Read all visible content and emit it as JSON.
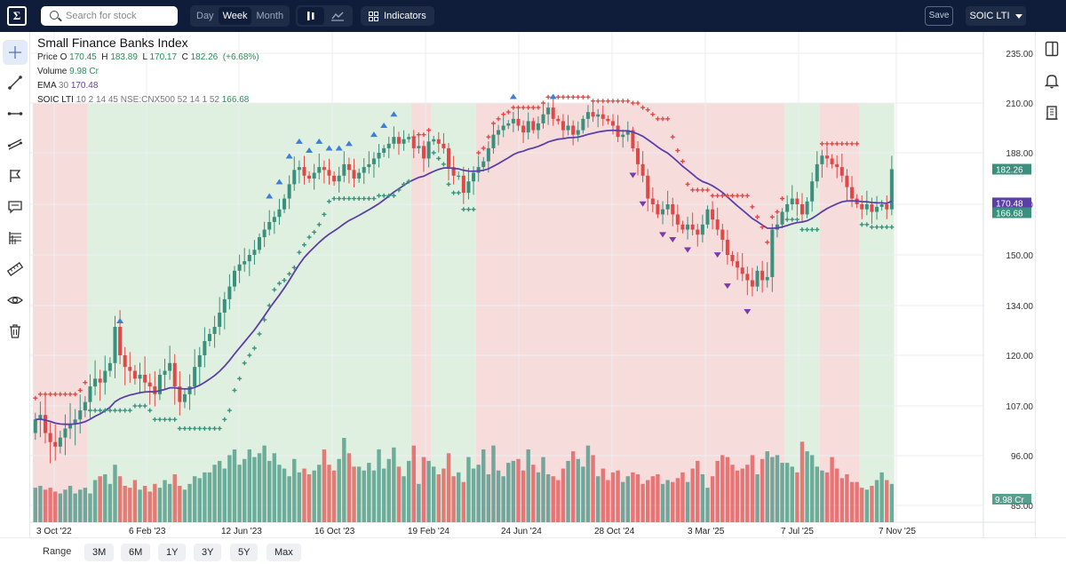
{
  "topbar": {
    "logo_icon": "logo-icon",
    "search_placeholder": "Search for stock",
    "timeframes": [
      "Day",
      "Week",
      "Month"
    ],
    "active_timeframe": "Week",
    "indicators_label": "Indicators",
    "save_label": "Save",
    "strategy_label": "SOIC LTI"
  },
  "legend": {
    "title": "Small Finance Banks Index",
    "price_label": "Price",
    "o_label": "O",
    "o_value": "170.45",
    "h_label": "H",
    "h_value": "183.89",
    "l_label": "L",
    "l_value": "170.17",
    "c_label": "C",
    "c_value": "182.26",
    "change": "(+6.68%)",
    "volume_label": "Volume",
    "volume_value": "9.98 Cr",
    "ema_label": "EMA",
    "ema_period": "30",
    "ema_value": "170.48",
    "soic_label": "SOIC LTI",
    "soic_params": "10 2 14 45 NSE:CNX500 52 14 1 52",
    "soic_value": "166.68"
  },
  "colors": {
    "up": "#3a8f7d",
    "down": "#e04848",
    "ema": "#5b3fa8",
    "bg_up": "#e0f0e0",
    "bg_down": "#f7dcdc",
    "arrow_up": "#3c7fd8",
    "arrow_down": "#7a3ab0"
  },
  "chart_data": {
    "type": "candlestick",
    "x_ticks": [
      "3 Oct '22",
      "6 Feb '23",
      "12 Jun '23",
      "16 Oct '23",
      "19 Feb '24",
      "24 Jun '24",
      "28 Oct '24",
      "3 Mar '25",
      "7 Jul '25",
      "7 Nov '25"
    ],
    "y_ticks": [
      "235.00",
      "210.00",
      "188.00",
      "170.00",
      "150.00",
      "134.00",
      "120.00",
      "107.00",
      "96.00",
      "85.00"
    ],
    "y_tick_values": [
      235,
      210,
      188,
      170,
      150,
      134,
      120,
      107,
      96,
      85
    ],
    "price_badges": [
      {
        "value": 182.26,
        "label": "182.26",
        "color": "#3a8f7d"
      },
      {
        "value": 170.48,
        "label": "170.48",
        "color": "#5b3fa8"
      },
      {
        "value": 166.68,
        "label": "166.68",
        "color": "#3a8f7d"
      }
    ],
    "volume_badge": "9.98 Cr",
    "ema_period": 30,
    "series_close": [
      104,
      105,
      101,
      99,
      98,
      100,
      102,
      103,
      104,
      106,
      108,
      112,
      114,
      113,
      116,
      118,
      128,
      120,
      117,
      116,
      114,
      115,
      113,
      112,
      110,
      115,
      116,
      118,
      112,
      108,
      110,
      112,
      117,
      120,
      124,
      126,
      128,
      132,
      136,
      140,
      145,
      147,
      148,
      150,
      152,
      157,
      160,
      163,
      165,
      168,
      172,
      177,
      182,
      183,
      180,
      179,
      181,
      183,
      182,
      180,
      178,
      180,
      184,
      182,
      179,
      181,
      183,
      184,
      186,
      188,
      190,
      192,
      195,
      192,
      194,
      195,
      190,
      191,
      186,
      193,
      194,
      192,
      190,
      183,
      180,
      180,
      174,
      178,
      181,
      183,
      185,
      190,
      196,
      198,
      200,
      201,
      203,
      200,
      197,
      202,
      198,
      201,
      205,
      208,
      203,
      202,
      198,
      200,
      196,
      198,
      203,
      206,
      204,
      205,
      203,
      202,
      200,
      195,
      196,
      198,
      190,
      184,
      180,
      172,
      170,
      166,
      168,
      170,
      166,
      162,
      160,
      162,
      160,
      158,
      162,
      168,
      164,
      160,
      156,
      150,
      148,
      146,
      144,
      142,
      140,
      145,
      142,
      143,
      160,
      162,
      167,
      170,
      172,
      170,
      166,
      171,
      178,
      184,
      187,
      186,
      184,
      183,
      180,
      176,
      172,
      170,
      168,
      170,
      167,
      169,
      170,
      168,
      182.26
    ],
    "volume_series": [
      18,
      19,
      17,
      18,
      16,
      15,
      17,
      19,
      15,
      17,
      18,
      15,
      22,
      24,
      25,
      20,
      30,
      24,
      19,
      18,
      22,
      17,
      19,
      16,
      20,
      18,
      22,
      20,
      25,
      19,
      17,
      20,
      24,
      23,
      26,
      26,
      30,
      32,
      28,
      35,
      38,
      30,
      33,
      38,
      34,
      36,
      40,
      32,
      36,
      30,
      28,
      24,
      33,
      26,
      28,
      25,
      27,
      30,
      38,
      30,
      27,
      33,
      44,
      36,
      29,
      29,
      27,
      31,
      27,
      38,
      28,
      33,
      39,
      29,
      24,
      32,
      40,
      20,
      34,
      32,
      29,
      25,
      28,
      36,
      24,
      26,
      21,
      34,
      28,
      30,
      38,
      25,
      40,
      27,
      24,
      31,
      32,
      33,
      27,
      38,
      30,
      26,
      34,
      25,
      24,
      22,
      28,
      32,
      37,
      33,
      29,
      40,
      35,
      24,
      28,
      22,
      26,
      27,
      21,
      24,
      26,
      25,
      20,
      22,
      24,
      25,
      20,
      22,
      21,
      23,
      26,
      21,
      28,
      32,
      25,
      18,
      24,
      32,
      35,
      34,
      30,
      27,
      28,
      30,
      35,
      25,
      33,
      37,
      34,
      35,
      31,
      31,
      29,
      26,
      42,
      37,
      35,
      29,
      27,
      26,
      34,
      28,
      23,
      25,
      21,
      21,
      18,
      17,
      19,
      22,
      26,
      22,
      20
    ]
  },
  "toolbar": {
    "left_tools": [
      "crosshair-icon",
      "trend-line-icon",
      "horizontal-line-icon",
      "channel-icon",
      "flag-icon",
      "comment-icon",
      "fib-icon",
      "ruler-icon",
      "eye-icon",
      "trash-icon"
    ],
    "right_tools": [
      "watchlist-icon",
      "alert-icon",
      "building-icon"
    ]
  },
  "bottombar": {
    "range_label": "Range",
    "ranges": [
      "3M",
      "6M",
      "1Y",
      "3Y",
      "5Y",
      "Max"
    ]
  }
}
